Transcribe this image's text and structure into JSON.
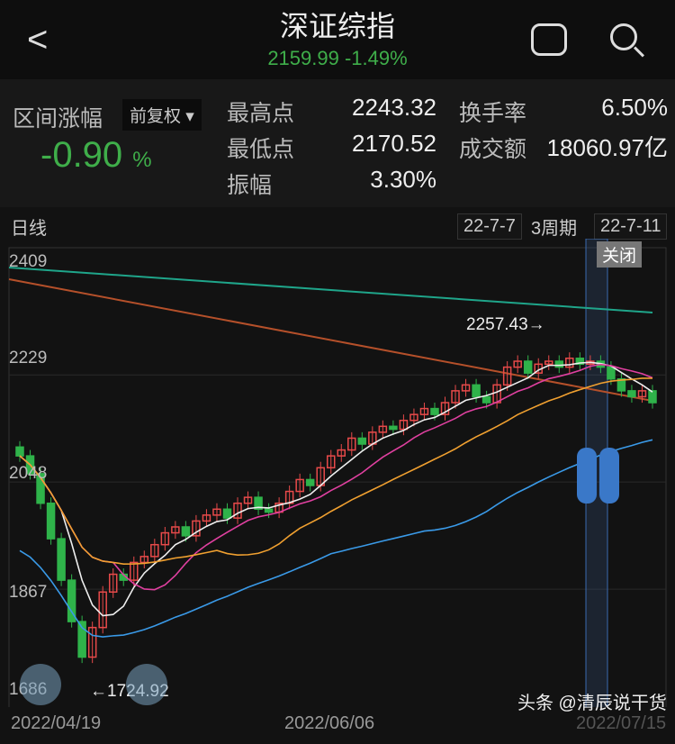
{
  "header": {
    "title": "深证综指",
    "price": "2159.99",
    "change": "-1.49%"
  },
  "stats": {
    "range_label": "区间涨幅",
    "adjust": "前复权",
    "range_change": "-0.90",
    "pct": "%",
    "high_label": "最高点",
    "high": "2243.32",
    "low_label": "最低点",
    "low": "2170.52",
    "amp_label": "振幅",
    "amp": "3.30%",
    "turn_label": "换手率",
    "turn": "6.50%",
    "vol_label": "成交额",
    "vol": "18060.97亿"
  },
  "chart": {
    "period": "日线",
    "start": "22-7-7",
    "span": "3周期",
    "end": "22-7-11",
    "close": "关闭",
    "y_ticks": [
      "2409",
      "2229",
      "2048",
      "1867",
      "1686"
    ],
    "x_ticks": [
      "2022/04/19",
      "2022/06/06",
      "2022/07/15"
    ],
    "max_note": "2257.43→",
    "min_note": "←1724.92",
    "up_color": "#e84a4a",
    "down_color": "#2fb34a",
    "closes": [
      2080,
      2050,
      2000,
      1940,
      1870,
      1800,
      1740,
      1790,
      1850,
      1880,
      1870,
      1900,
      1910,
      1930,
      1950,
      1960,
      1945,
      1970,
      1980,
      1990,
      1975,
      2000,
      2010,
      1990,
      1985,
      2000,
      2020,
      2040,
      2030,
      2060,
      2080,
      2090,
      2110,
      2100,
      2120,
      2130,
      2125,
      2140,
      2150,
      2160,
      2150,
      2170,
      2190,
      2200,
      2180,
      2170,
      2200,
      2230,
      2240,
      2220,
      2235,
      2240,
      2230,
      2245,
      2235,
      2240,
      2230,
      2210,
      2190,
      2180,
      2190,
      2170
    ]
  },
  "watermark": "头条 @清辰说干货"
}
